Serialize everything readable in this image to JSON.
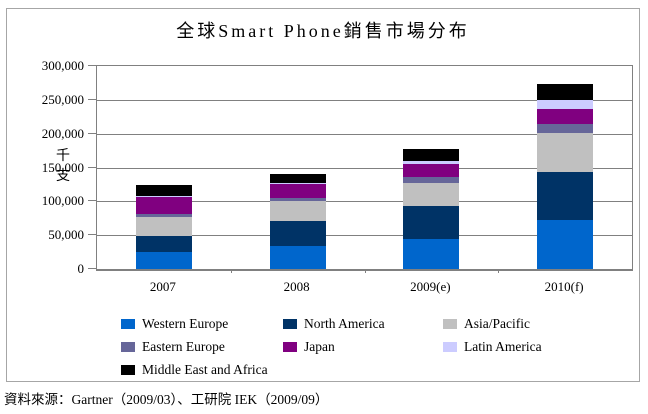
{
  "title": "全球Smart Phone銷售市場分布",
  "source_note": "資料來源：Gartner（2009/03）、工研院 IEK（2009/09）",
  "y_axis": {
    "unit_label": "千支",
    "tick_labels": [
      "300,000",
      "250,000",
      "200,000",
      "150,000",
      "100,000",
      "50,000",
      "0"
    ]
  },
  "x_axis": {
    "labels": [
      "2007",
      "2008",
      "2009(e)",
      "2010(f)"
    ]
  },
  "colors": {
    "gridline": "#808080",
    "plot_border": "#808080",
    "frame_border": "#a6a6a6",
    "text": "#000000"
  },
  "chart_data": {
    "type": "bar",
    "stacked": true,
    "title": "全球Smart Phone銷售市場分布",
    "xlabel": "",
    "ylabel": "千支",
    "ylim": [
      0,
      300000
    ],
    "ytick_interval": 50000,
    "grid": true,
    "legend_position": "bottom",
    "categories": [
      "2007",
      "2008",
      "2009(e)",
      "2010(f)"
    ],
    "series": [
      {
        "name": "Western Europe",
        "color": "#0066CC",
        "values": [
          25500,
          33500,
          45000,
          73000
        ]
      },
      {
        "name": "North America",
        "color": "#003366",
        "values": [
          24000,
          37000,
          47500,
          70000
        ]
      },
      {
        "name": "Asia/Pacific",
        "color": "#C0C0C0",
        "values": [
          27500,
          29500,
          35000,
          58000
        ]
      },
      {
        "name": "Eastern Europe",
        "color": "#666699",
        "values": [
          5000,
          5500,
          9000,
          14000
        ]
      },
      {
        "name": "Japan",
        "color": "#800080",
        "values": [
          25000,
          19500,
          18500,
          21000
        ]
      },
      {
        "name": "Latin America",
        "color": "#CCCCFF",
        "values": [
          1500,
          2000,
          5000,
          14000
        ]
      },
      {
        "name": "Middle East and Africa",
        "color": "#000000",
        "values": [
          15000,
          13500,
          17500,
          23500
        ]
      }
    ],
    "totals": [
      123500,
      140500,
      177500,
      273500
    ]
  }
}
